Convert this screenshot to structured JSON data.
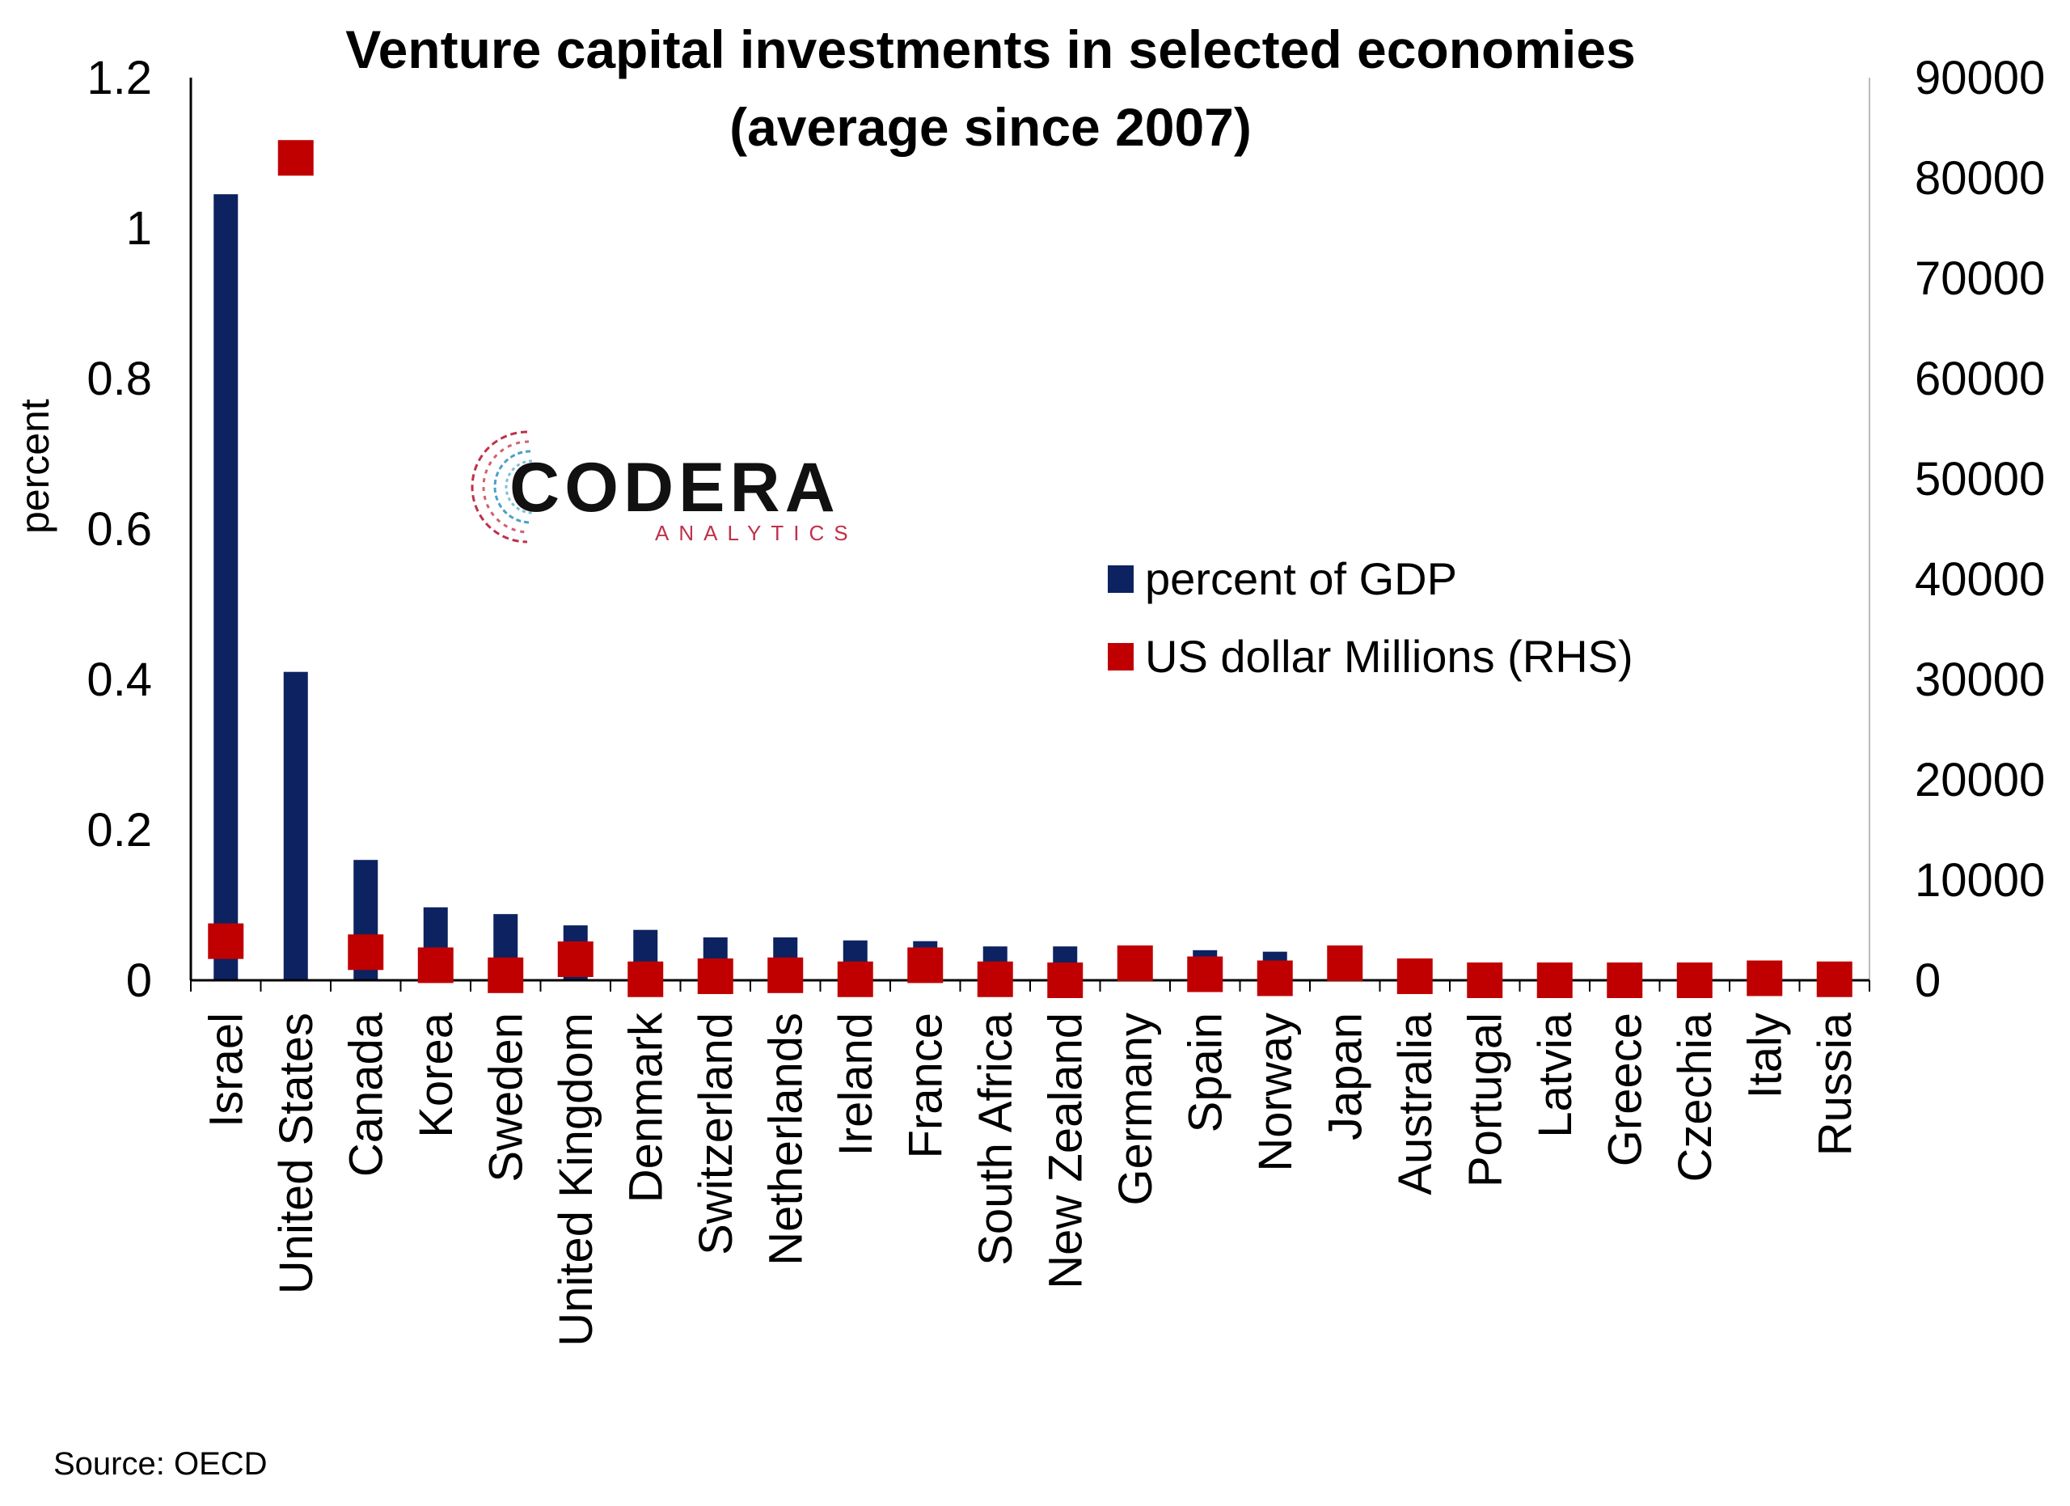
{
  "chart_data": {
    "type": "bar",
    "title": "Venture capital investments in selected economies",
    "subtitle": "(average since 2007)",
    "ylabel": "percent",
    "y2label": "",
    "ylim": [
      0,
      1.2
    ],
    "y2lim": [
      0,
      90000
    ],
    "yticks": [
      "0",
      "0.2",
      "0.4",
      "0.6",
      "0.8",
      "1",
      "1.2"
    ],
    "y2ticks": [
      "0",
      "10000",
      "20000",
      "30000",
      "40000",
      "50000",
      "60000",
      "70000",
      "80000",
      "90000"
    ],
    "categories": [
      "Israel",
      "United States",
      "Canada",
      "Korea",
      "Sweden",
      "United Kingdom",
      "Denmark",
      "Switzerland",
      "Netherlands",
      "Ireland",
      "France",
      "South Africa",
      "New Zealand",
      "Germany",
      "Spain",
      "Norway",
      "Japan",
      "Australia",
      "Portugal",
      "Latvia",
      "Greece",
      "Czechia",
      "Italy",
      "Russia"
    ],
    "series": [
      {
        "name": "percent of GDP",
        "kind": "bar",
        "axis": "left",
        "color": "#0d2260",
        "values": [
          1.045,
          0.41,
          0.16,
          0.097,
          0.088,
          0.073,
          0.067,
          0.057,
          0.057,
          0.053,
          0.052,
          0.045,
          0.045,
          0.038,
          0.04,
          0.038,
          0.03,
          0.022,
          0.018,
          0.01,
          0.008,
          0.008,
          0.01,
          0.007
        ]
      },
      {
        "name": "US dollar Millions (RHS)",
        "kind": "marker",
        "axis": "right",
        "color": "#c00000",
        "values": [
          3900,
          82000,
          2800,
          1500,
          500,
          2100,
          100,
          400,
          500,
          100,
          1500,
          100,
          0,
          1700,
          600,
          200,
          1700,
          400,
          0,
          0,
          0,
          0,
          200,
          100
        ]
      }
    ],
    "grid": false,
    "legend_position": "center-right"
  },
  "logo": {
    "word": "CODERA",
    "sub": "ANALYTICS"
  },
  "source": "Source: OECD"
}
